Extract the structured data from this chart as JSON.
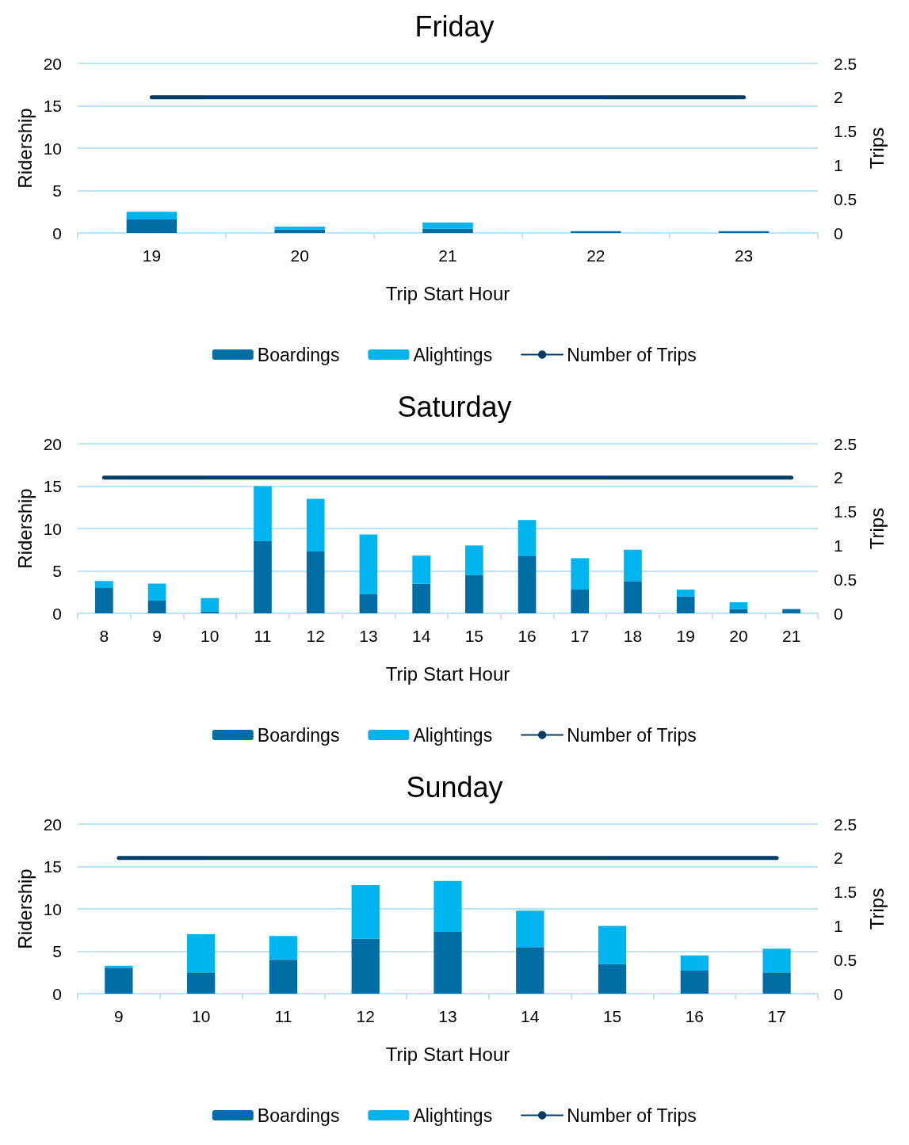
{
  "chart_data": [
    {
      "type": "bar",
      "title": "Friday",
      "xlabel": "Trip Start Hour",
      "ylabel": "Ridership",
      "y2label": "Trips",
      "categories": [
        "19",
        "20",
        "21",
        "22",
        "23"
      ],
      "stacked": true,
      "grid": "y",
      "legend": "bottom",
      "ylim": [
        0,
        20
      ],
      "yticks": [
        0,
        5,
        10,
        15,
        20
      ],
      "y2lim": [
        0,
        2.5
      ],
      "y2ticks": [
        0,
        0.5,
        1,
        1.5,
        2,
        2.5
      ],
      "series": [
        {
          "name": "Boardings",
          "color": "#006ea5",
          "values": [
            1.6,
            0.4,
            0.5,
            0.2,
            0.2
          ]
        },
        {
          "name": "Alightings",
          "color": "#00b4ef",
          "values": [
            0.9,
            0.35,
            0.75,
            0,
            0
          ]
        },
        {
          "name": "Number of Trips",
          "type": "line",
          "axis": "y2",
          "color": "#003f63",
          "values": [
            2,
            2,
            2,
            2,
            2
          ]
        }
      ]
    },
    {
      "type": "bar",
      "title": "Saturday",
      "xlabel": "Trip Start Hour",
      "ylabel": "Ridership",
      "y2label": "Trips",
      "categories": [
        "8",
        "9",
        "10",
        "11",
        "12",
        "13",
        "14",
        "15",
        "16",
        "17",
        "18",
        "19",
        "20",
        "21"
      ],
      "stacked": true,
      "grid": "y",
      "legend": "bottom",
      "ylim": [
        0,
        20
      ],
      "yticks": [
        0,
        5,
        10,
        15,
        20
      ],
      "y2lim": [
        0,
        2.5
      ],
      "y2ticks": [
        0,
        0.5,
        1,
        1.5,
        2,
        2.5
      ],
      "series": [
        {
          "name": "Boardings",
          "color": "#006ea5",
          "values": [
            3,
            1.5,
            0.2,
            8.5,
            7.3,
            2.3,
            3.5,
            4.5,
            6.8,
            2.8,
            3.8,
            2,
            0.5,
            0.5
          ]
        },
        {
          "name": "Alightings",
          "color": "#00b4ef",
          "values": [
            0.8,
            2,
            1.6,
            6.5,
            6.2,
            7,
            3.3,
            3.5,
            4.2,
            3.7,
            3.7,
            0.8,
            0.8,
            0
          ]
        },
        {
          "name": "Number of Trips",
          "type": "line",
          "axis": "y2",
          "color": "#003f63",
          "values": [
            2,
            2,
            2,
            2,
            2,
            2,
            2,
            2,
            2,
            2,
            2,
            2,
            2,
            2
          ]
        }
      ]
    },
    {
      "type": "bar",
      "title": "Sunday",
      "xlabel": "Trip Start Hour",
      "ylabel": "Ridership",
      "y2label": "Trips",
      "categories": [
        "9",
        "10",
        "11",
        "12",
        "13",
        "14",
        "15",
        "16",
        "17"
      ],
      "stacked": true,
      "grid": "y",
      "legend": "bottom",
      "ylim": [
        0,
        20
      ],
      "yticks": [
        0,
        5,
        10,
        15,
        20
      ],
      "y2lim": [
        0,
        2.5
      ],
      "y2ticks": [
        0,
        0.5,
        1,
        1.5,
        2,
        2.5
      ],
      "series": [
        {
          "name": "Boardings",
          "color": "#006ea5",
          "values": [
            3,
            2.5,
            4,
            6.5,
            7.3,
            5.5,
            3.5,
            2.7,
            2.5
          ]
        },
        {
          "name": "Alightings",
          "color": "#00b4ef",
          "values": [
            0.3,
            4.5,
            2.8,
            6.3,
            6,
            4.3,
            4.5,
            1.8,
            2.8
          ]
        },
        {
          "name": "Number of Trips",
          "type": "line",
          "axis": "y2",
          "color": "#003f63",
          "values": [
            2,
            2,
            2,
            2,
            2,
            2,
            2,
            2,
            2
          ]
        }
      ]
    }
  ]
}
